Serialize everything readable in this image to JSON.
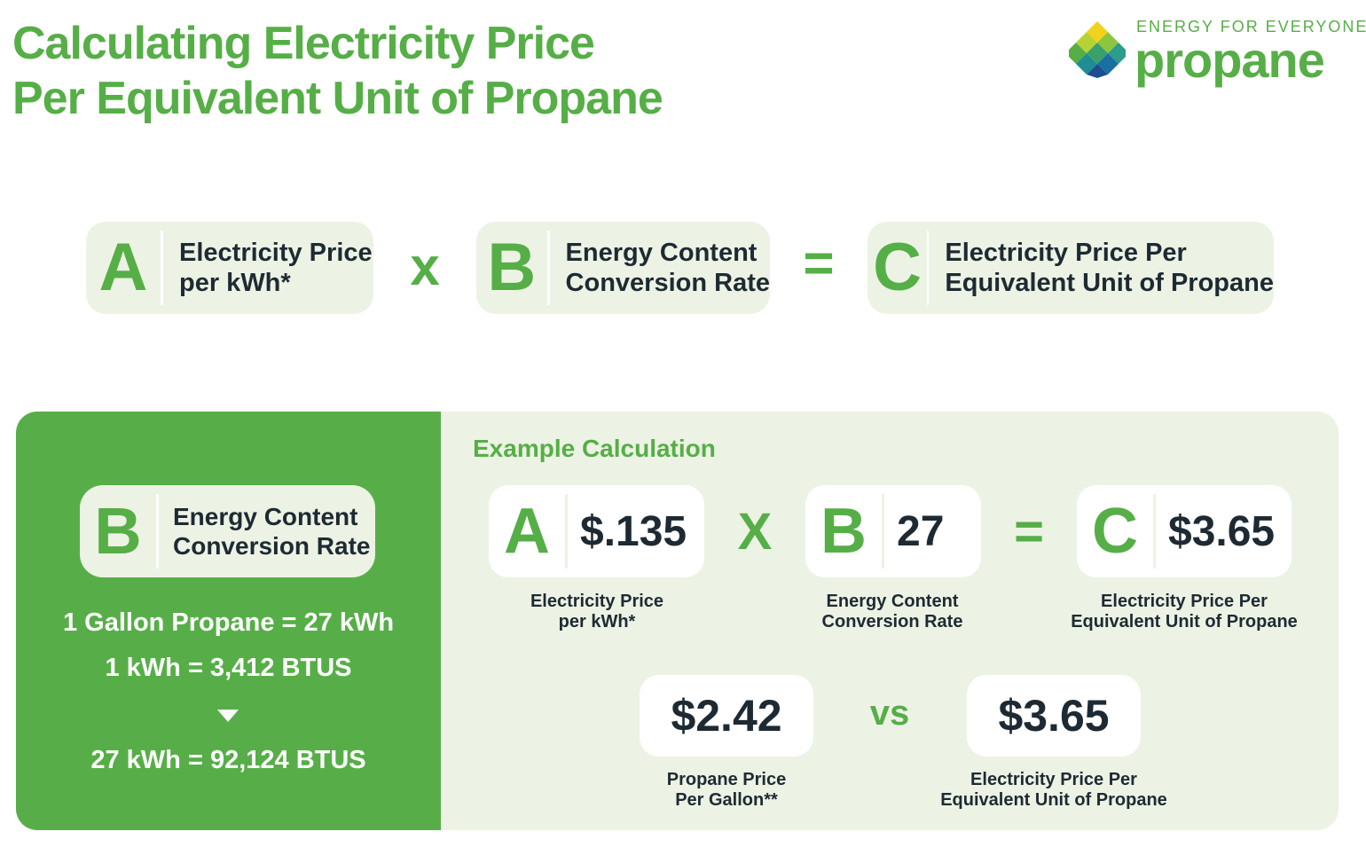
{
  "title": {
    "line1": "Calculating Electricity Price",
    "line2": "Per Equivalent Unit of Propane"
  },
  "logo": {
    "tagline": "ENERGY FOR EVERYONE",
    "wordmark": "propane"
  },
  "formula": {
    "a": {
      "letter": "A",
      "line1": "Electricity Price",
      "line2": "per kWh*"
    },
    "times": "x",
    "b": {
      "letter": "B",
      "line1": "Energy Content",
      "line2": "Conversion Rate"
    },
    "equals": "=",
    "c": {
      "letter": "C",
      "line1": "Electricity Price Per",
      "line2": "Equivalent Unit of Propane"
    }
  },
  "conversion": {
    "box": {
      "letter": "B",
      "line1": "Energy Content",
      "line2": "Conversion Rate"
    },
    "line1": "1 Gallon Propane = 27 kWh",
    "line2": "1 kWh = 3,412 BTUS",
    "line3": "27 kWh = 92,124 BTUS"
  },
  "example": {
    "title": "Example Calculation",
    "a": {
      "letter": "A",
      "value": "$.135",
      "cap1": "Electricity Price",
      "cap2": "per kWh*"
    },
    "times": "X",
    "b": {
      "letter": "B",
      "value": "27",
      "cap1": "Energy Content",
      "cap2": "Conversion Rate"
    },
    "equals": "=",
    "c": {
      "letter": "C",
      "value": "$3.65",
      "cap1": "Electricity Price Per",
      "cap2": "Equivalent Unit of Propane"
    }
  },
  "comparison": {
    "left": {
      "value": "$2.42",
      "cap1": "Propane Price",
      "cap2": "Per Gallon**"
    },
    "vs": "vs",
    "right": {
      "value": "$3.65",
      "cap1": "Electricity Price Per",
      "cap2": "Equivalent Unit of Propane"
    }
  },
  "colors": {
    "brand_green": "#56ae47",
    "light_green_bg": "#ecf3e4",
    "text_dark": "#1e2a33"
  }
}
